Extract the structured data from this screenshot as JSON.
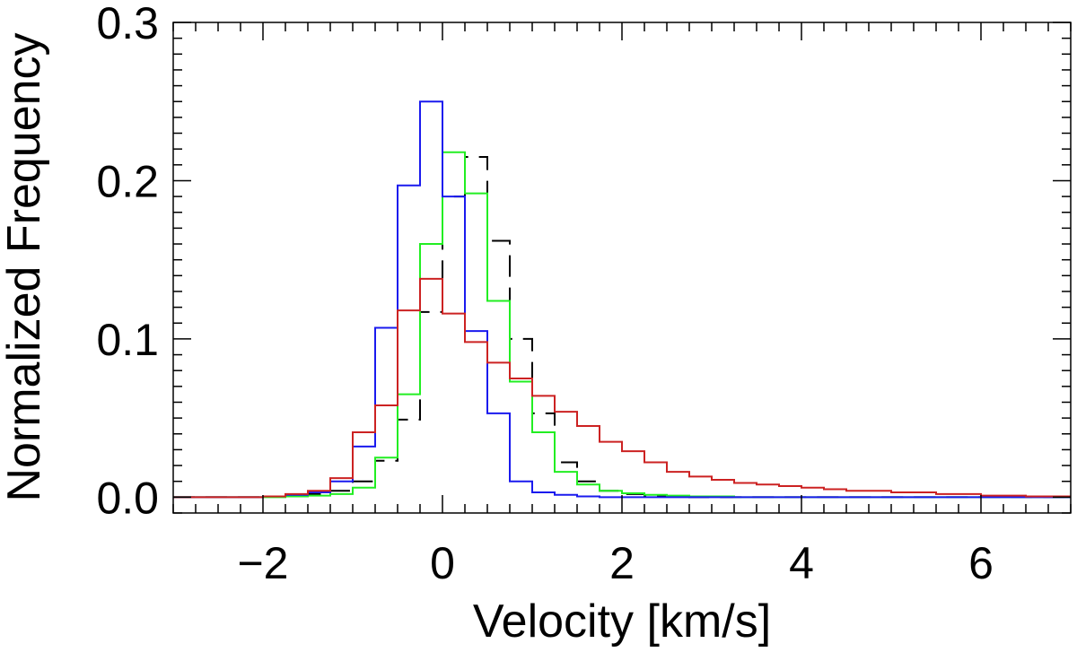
{
  "chart_data": {
    "type": "histogram",
    "xlabel": "Velocity [km/s]",
    "ylabel": "Normalized Frequency",
    "xlim": [
      -3,
      7
    ],
    "ylim": [
      -0.01,
      0.3
    ],
    "x_ticks": [
      -2,
      0,
      2,
      4,
      6
    ],
    "x_tick_labels": [
      "−2",
      "0",
      "2",
      "4",
      "6"
    ],
    "y_ticks": [
      0.0,
      0.1,
      0.2,
      0.3
    ],
    "y_tick_labels": [
      "0.0",
      "0.1",
      "0.2",
      "0.3"
    ],
    "x_minor_step": 0.25,
    "y_minor_step": 0.01,
    "bin_width": 0.25,
    "bin_start": -3,
    "series": [
      {
        "name": "black",
        "color": "#000000",
        "style": "dashed",
        "values": [
          0,
          0,
          0,
          0,
          0.0005,
          0.001,
          0.002,
          0.004,
          0.01,
          0.023,
          0.049,
          0.117,
          0.19,
          0.215,
          0.162,
          0.1,
          0.053,
          0.022,
          0.01,
          0.004,
          0.002,
          0.001,
          0.0005,
          0,
          0,
          0,
          0,
          0,
          0,
          0,
          0,
          0,
          0,
          0,
          0,
          0,
          0,
          0,
          0,
          0
        ]
      },
      {
        "name": "green",
        "color": "#22ee22",
        "style": "solid",
        "values": [
          0,
          0,
          0,
          0,
          0,
          0.0005,
          0.001,
          0.002,
          0.006,
          0.025,
          0.065,
          0.16,
          0.218,
          0.192,
          0.124,
          0.073,
          0.041,
          0.016,
          0.008,
          0.004,
          0.0025,
          0.0015,
          0.001,
          0.0005,
          0.0005,
          0,
          0,
          0,
          0,
          0,
          0,
          0,
          0,
          0,
          0,
          0,
          0,
          0,
          0,
          0
        ]
      },
      {
        "name": "blue",
        "color": "#1a1aee",
        "style": "solid",
        "values": [
          0,
          0,
          0,
          0,
          0.0005,
          0.0015,
          0.003,
          0.01,
          0.032,
          0.107,
          0.197,
          0.25,
          0.19,
          0.105,
          0.053,
          0.01,
          0.003,
          0.0015,
          0.0005,
          0,
          0,
          0,
          0,
          0,
          0,
          0,
          0,
          0,
          0,
          0,
          0,
          0,
          0,
          0,
          0,
          0,
          0,
          0,
          0,
          0
        ]
      },
      {
        "name": "red",
        "color": "#cc2222",
        "style": "solid",
        "values": [
          0,
          0,
          0,
          0,
          0.0005,
          0.002,
          0.004,
          0.012,
          0.041,
          0.058,
          0.118,
          0.138,
          0.116,
          0.098,
          0.085,
          0.075,
          0.064,
          0.054,
          0.045,
          0.035,
          0.029,
          0.022,
          0.016,
          0.013,
          0.011,
          0.009,
          0.008,
          0.007,
          0.006,
          0.005,
          0.004,
          0.004,
          0.003,
          0.003,
          0.002,
          0.002,
          0.001,
          0.001,
          0.0005,
          0.0005
        ]
      }
    ]
  }
}
